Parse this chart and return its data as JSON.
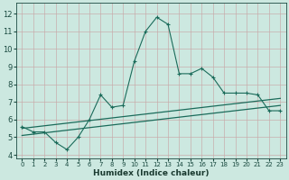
{
  "xlabel": "Humidex (Indice chaleur)",
  "bg_color": "#cce8e0",
  "grid_color": "#aac8c0",
  "line_color": "#1a6b5a",
  "xlim": [
    -0.5,
    23.5
  ],
  "ylim": [
    3.8,
    12.6
  ],
  "xticks": [
    0,
    1,
    2,
    3,
    4,
    5,
    6,
    7,
    8,
    9,
    10,
    11,
    12,
    13,
    14,
    15,
    16,
    17,
    18,
    19,
    20,
    21,
    22,
    23
  ],
  "yticks": [
    4,
    5,
    6,
    7,
    8,
    9,
    10,
    11,
    12
  ],
  "curve1_x": [
    0,
    1,
    2,
    3,
    4,
    5,
    6,
    7,
    8,
    9,
    10,
    11,
    12,
    13,
    14,
    15,
    16,
    17,
    18,
    19,
    20,
    21,
    22,
    23
  ],
  "curve1_y": [
    5.6,
    5.3,
    5.3,
    4.7,
    4.3,
    5.0,
    6.0,
    7.4,
    6.7,
    6.8,
    9.3,
    11.0,
    11.8,
    11.4,
    8.6,
    8.6,
    8.9,
    8.4,
    7.5,
    7.5,
    7.5,
    7.4,
    6.5,
    6.5
  ],
  "line2_x0": 0,
  "line2_x1": 23,
  "line2_y0": 5.5,
  "line2_y1": 7.2,
  "line3_x0": 0,
  "line3_x1": 23,
  "line3_y0": 5.1,
  "line3_y1": 6.8
}
